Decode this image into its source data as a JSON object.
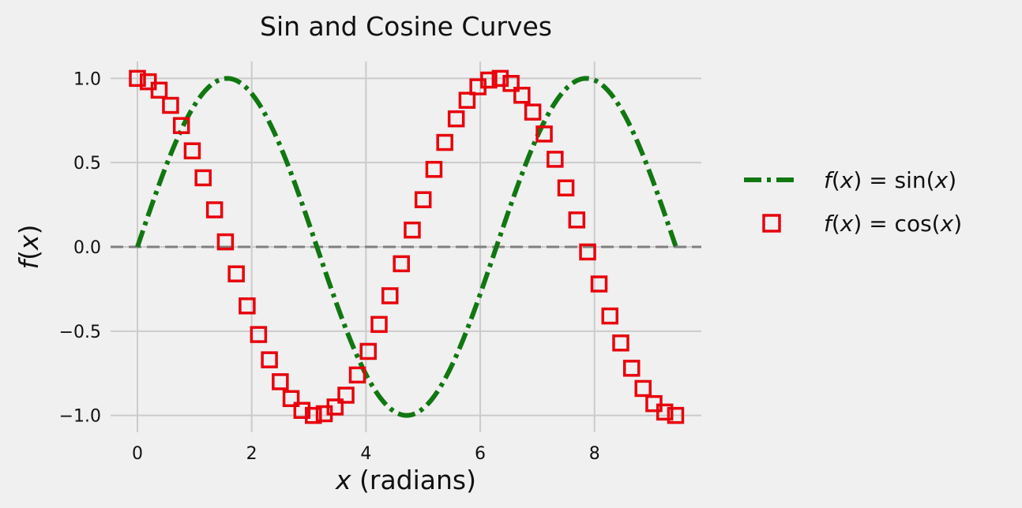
{
  "chart_data": {
    "type": "line",
    "title": "Sin and Cosine Curves",
    "xlabel": {
      "var": "x",
      "rest": " (radians)"
    },
    "ylabel": {
      "func": "f",
      "open": "(",
      "var": "x",
      "close": ")"
    },
    "xlim": [
      -0.47,
      9.87
    ],
    "ylim": [
      -1.1,
      1.1
    ],
    "xticks": [
      0,
      2,
      4,
      6,
      8
    ],
    "xtick_labels": [
      "0",
      "2",
      "4",
      "6",
      "8"
    ],
    "yticks": [
      -1.0,
      -0.5,
      0.0,
      0.5,
      1.0
    ],
    "ytick_labels": [
      "−1.0",
      "−0.5",
      "0.0",
      "0.5",
      "1.0"
    ],
    "grid": true,
    "legend_position": "outside-right",
    "reference_line": {
      "y": 0.0,
      "style": "dashed",
      "color": "#808080"
    },
    "series": [
      {
        "name": "f(x) = sin(x)",
        "legend": {
          "func": "f",
          "open": "(",
          "var": "x",
          "mid": ") = sin(",
          "var2": "x",
          "close": ")"
        },
        "function": "sin",
        "x_range": [
          0,
          9.42
        ],
        "style": "dashdot",
        "color": "#117711"
      },
      {
        "name": "f(x) = cos(x)",
        "legend": {
          "func": "f",
          "open": "(",
          "var": "x",
          "mid": ") = cos(",
          "var2": "x",
          "close": ")"
        },
        "style": "open-square-markers",
        "color": "#e8000b",
        "x": [
          0.0,
          0.19,
          0.38,
          0.58,
          0.77,
          0.96,
          1.15,
          1.35,
          1.54,
          1.73,
          1.92,
          2.12,
          2.31,
          2.5,
          2.69,
          2.88,
          3.08,
          3.27,
          3.46,
          3.65,
          3.85,
          4.04,
          4.23,
          4.42,
          4.62,
          4.81,
          5.0,
          5.19,
          5.38,
          5.58,
          5.77,
          5.96,
          6.15,
          6.35,
          6.54,
          6.73,
          6.92,
          7.12,
          7.31,
          7.5,
          7.69,
          7.88,
          8.08,
          8.27,
          8.46,
          8.65,
          8.85,
          9.04,
          9.23,
          9.42
        ],
        "values": [
          1.0,
          0.98,
          0.93,
          0.84,
          0.72,
          0.57,
          0.41,
          0.22,
          0.03,
          -0.16,
          -0.35,
          -0.52,
          -0.67,
          -0.8,
          -0.9,
          -0.97,
          -1.0,
          -0.99,
          -0.95,
          -0.88,
          -0.76,
          -0.62,
          -0.46,
          -0.29,
          -0.1,
          0.1,
          0.28,
          0.46,
          0.62,
          0.76,
          0.87,
          0.95,
          0.99,
          1.0,
          0.97,
          0.9,
          0.8,
          0.67,
          0.52,
          0.35,
          0.16,
          -0.03,
          -0.22,
          -0.41,
          -0.57,
          -0.72,
          -0.84,
          -0.93,
          -0.98,
          -1.0
        ]
      }
    ]
  }
}
